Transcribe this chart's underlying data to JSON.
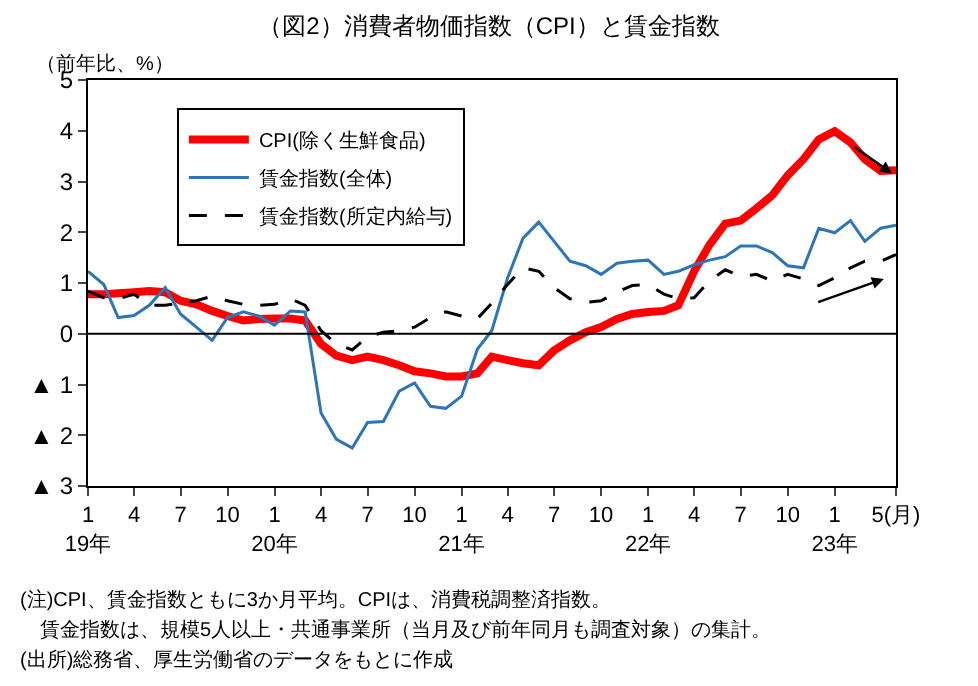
{
  "chart_data": {
    "type": "line",
    "title": "（図2）消費者物価指数（CPI）と賃金指数",
    "ylabel": "（前年比、%）",
    "x": [
      "2019-01",
      "2019-02",
      "2019-03",
      "2019-04",
      "2019-05",
      "2019-06",
      "2019-07",
      "2019-08",
      "2019-09",
      "2019-10",
      "2019-11",
      "2019-12",
      "2020-01",
      "2020-02",
      "2020-03",
      "2020-04",
      "2020-05",
      "2020-06",
      "2020-07",
      "2020-08",
      "2020-09",
      "2020-10",
      "2020-11",
      "2020-12",
      "2021-01",
      "2021-02",
      "2021-03",
      "2021-04",
      "2021-05",
      "2021-06",
      "2021-07",
      "2021-08",
      "2021-09",
      "2021-10",
      "2021-11",
      "2021-12",
      "2022-01",
      "2022-02",
      "2022-03",
      "2022-04",
      "2022-05",
      "2022-06",
      "2022-07",
      "2022-08",
      "2022-09",
      "2022-10",
      "2022-11",
      "2022-12",
      "2023-01",
      "2023-02",
      "2023-03",
      "2023-04",
      "2023-05"
    ],
    "series": [
      {
        "name": "CPI(除く生鮮食品)",
        "color": "#ff0000",
        "line_style": "solid",
        "values": [
          0.78,
          0.78,
          0.8,
          0.82,
          0.84,
          0.82,
          0.65,
          0.58,
          0.45,
          0.35,
          0.26,
          0.29,
          0.3,
          0.3,
          0.26,
          -0.2,
          -0.43,
          -0.52,
          -0.45,
          -0.52,
          -0.62,
          -0.74,
          -0.78,
          -0.84,
          -0.84,
          -0.78,
          -0.45,
          -0.52,
          -0.58,
          -0.62,
          -0.33,
          -0.13,
          0.03,
          0.13,
          0.29,
          0.39,
          0.43,
          0.45,
          0.56,
          1.23,
          1.75,
          2.17,
          2.23,
          2.47,
          2.73,
          3.12,
          3.44,
          3.83,
          3.99,
          3.77,
          3.44,
          3.21,
          3.22
        ]
      },
      {
        "name": "賃金指数(全体)",
        "color": "#2e75b6",
        "line_style": "solid",
        "values": [
          1.23,
          0.97,
          0.32,
          0.36,
          0.56,
          0.91,
          0.39,
          0.13,
          -0.13,
          0.32,
          0.43,
          0.35,
          0.17,
          0.45,
          0.43,
          -1.56,
          -2.08,
          -2.25,
          -1.75,
          -1.73,
          -1.13,
          -0.97,
          -1.43,
          -1.47,
          -1.23,
          -0.3,
          0.06,
          1.1,
          1.88,
          2.2,
          1.82,
          1.43,
          1.34,
          1.17,
          1.39,
          1.43,
          1.45,
          1.17,
          1.23,
          1.36,
          1.45,
          1.52,
          1.73,
          1.73,
          1.6,
          1.34,
          1.3,
          2.08,
          1.99,
          2.23,
          1.82,
          2.08,
          2.14
        ]
      },
      {
        "name": "賃金指数(所定内給与)",
        "color": "#000000",
        "line_style": "dashed",
        "values": [
          0.84,
          0.71,
          0.69,
          0.78,
          0.56,
          0.56,
          0.61,
          0.65,
          0.74,
          0.65,
          0.58,
          0.56,
          0.58,
          0.69,
          0.56,
          0.06,
          -0.2,
          -0.32,
          -0.06,
          0.03,
          0.06,
          0.13,
          0.32,
          0.43,
          0.35,
          0.3,
          0.6,
          0.97,
          1.3,
          1.23,
          0.91,
          0.69,
          0.62,
          0.65,
          0.82,
          0.95,
          0.97,
          0.78,
          0.69,
          0.71,
          1.04,
          1.26,
          1.13,
          1.17,
          1.04,
          1.17,
          1.08,
          0.95,
          1.1,
          1.3,
          1.43,
          1.43,
          1.56
        ]
      }
    ],
    "xlim": [
      "2019-01",
      "2023-05"
    ],
    "xticks": [
      {
        "value": "2019-01",
        "label": "1\n19年"
      },
      {
        "value": "2019-04",
        "label": "4"
      },
      {
        "value": "2019-07",
        "label": "7"
      },
      {
        "value": "2019-10",
        "label": "10"
      },
      {
        "value": "2020-01",
        "label": "1\n20年"
      },
      {
        "value": "2020-04",
        "label": "4"
      },
      {
        "value": "2020-07",
        "label": "7"
      },
      {
        "value": "2020-10",
        "label": "10"
      },
      {
        "value": "2021-01",
        "label": "1\n21年"
      },
      {
        "value": "2021-04",
        "label": "4"
      },
      {
        "value": "2021-07",
        "label": "7"
      },
      {
        "value": "2021-10",
        "label": "10"
      },
      {
        "value": "2022-01",
        "label": "1\n22年"
      },
      {
        "value": "2022-04",
        "label": "4"
      },
      {
        "value": "2022-07",
        "label": "7"
      },
      {
        "value": "2022-10",
        "label": "10"
      },
      {
        "value": "2023-01",
        "label": "1\n23年"
      },
      {
        "value": "2023-05",
        "label": "5(月)"
      }
    ],
    "ylim": [
      -3,
      5
    ],
    "yticks": [
      {
        "value": -3,
        "label": "▲ 3"
      },
      {
        "value": -2,
        "label": "▲ 2"
      },
      {
        "value": -1,
        "label": "▲ 1"
      },
      0,
      1,
      2,
      3,
      4,
      5
    ],
    "ref_lines": [
      {
        "axis": "y",
        "value": 0
      }
    ],
    "legend": "top left",
    "marker": "none",
    "annotations": [
      "(注)CPI、賃金指数ともに3か月平均。CPIは、消費税調整済指数。",
      "　賃金指数は、規模5人以上・共通事業所（当月及び前年同月も調査対象）の集計。",
      "(出所)総務省、厚生労働省のデータをもとに作成"
    ]
  }
}
